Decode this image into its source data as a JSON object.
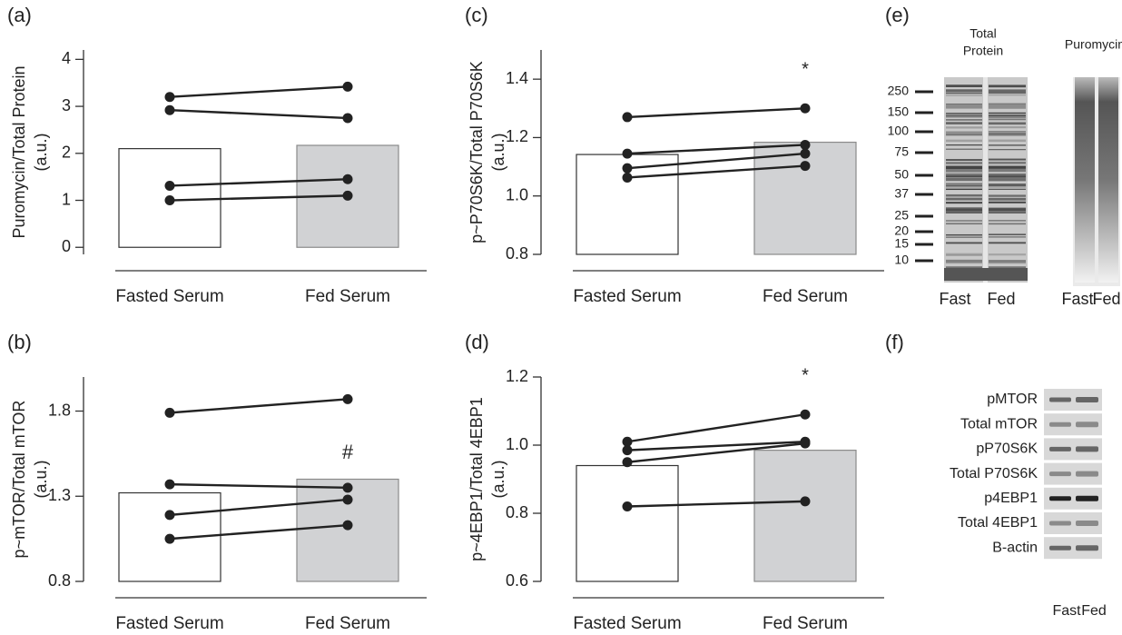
{
  "chart_data": [
    {
      "type": "bar",
      "panel": "(a)",
      "ylabel": [
        "Puromycin/Total Protein",
        "(a.u.)"
      ],
      "categories": [
        "Fasted Serum",
        "Fed Serum"
      ],
      "values": [
        2.1,
        2.17
      ],
      "bar_colors": [
        "#ffffff",
        "#d1d2d4"
      ],
      "series": [
        {
          "color": "#222222",
          "values": [
            3.2,
            3.42
          ]
        },
        {
          "color": "#222222",
          "values": [
            2.92,
            2.75
          ]
        },
        {
          "color": "#222222",
          "values": [
            1.31,
            1.45
          ]
        },
        {
          "color": "#222222",
          "values": [
            1.0,
            1.1
          ]
        }
      ],
      "ylim": [
        -0.15,
        4.2
      ],
      "yticks": [
        0,
        1,
        2,
        3,
        4
      ]
    },
    {
      "type": "bar",
      "panel": "(b)",
      "ylabel": [
        "p~mTOR/Total mTOR",
        "(a.u.)"
      ],
      "categories": [
        "Fasted Serum",
        "Fed Serum"
      ],
      "values": [
        1.32,
        1.4
      ],
      "bar_colors": [
        "#ffffff",
        "#d1d2d4"
      ],
      "series": [
        {
          "color": "#222222",
          "values": [
            1.79,
            1.87
          ]
        },
        {
          "color": "#222222",
          "values": [
            1.37,
            1.35
          ]
        },
        {
          "color": "#222222",
          "values": [
            1.19,
            1.28
          ]
        },
        {
          "color": "#222222",
          "values": [
            1.05,
            1.13
          ]
        }
      ],
      "ylim": [
        0.8,
        2.0
      ],
      "yticks": [
        0.8,
        1.3,
        1.8
      ],
      "annotation": "#"
    },
    {
      "type": "bar",
      "panel": "(c)",
      "ylabel": [
        "p~P70S6K/Total P70S6K",
        "(a.u.)"
      ],
      "categories": [
        "Fasted Serum",
        "Fed Serum"
      ],
      "values": [
        1.142,
        1.184
      ],
      "bar_colors": [
        "#ffffff",
        "#d1d2d4"
      ],
      "series": [
        {
          "color": "#222222",
          "values": [
            1.27,
            1.3
          ]
        },
        {
          "color": "#222222",
          "values": [
            1.145,
            1.175
          ]
        },
        {
          "color": "#222222",
          "values": [
            1.095,
            1.145
          ]
        },
        {
          "color": "#222222",
          "values": [
            1.063,
            1.103
          ]
        }
      ],
      "ylim": [
        0.8,
        1.5
      ],
      "yticks": [
        0.8,
        {
          "value": 1,
          "label": "1.0"
        },
        1.2,
        1.4
      ],
      "annotation": "*"
    },
    {
      "type": "bar",
      "panel": "(d)",
      "ylabel": [
        "p~4EBP1/Total 4EBP1",
        "(a.u.)"
      ],
      "categories": [
        "Fasted Serum",
        "Fed Serum"
      ],
      "values": [
        0.94,
        0.985
      ],
      "bar_colors": [
        "#ffffff",
        "#d1d2d4"
      ],
      "series": [
        {
          "color": "#222222",
          "values": [
            1.01,
            1.09
          ]
        },
        {
          "color": "#222222",
          "values": [
            0.985,
            1.01
          ]
        },
        {
          "color": "#222222",
          "values": [
            0.95,
            1.005
          ]
        },
        {
          "color": "#222222",
          "values": [
            0.82,
            0.835
          ]
        }
      ],
      "ylim": [
        0.6,
        1.2
      ],
      "yticks": [
        0.6,
        0.8,
        {
          "value": 1,
          "label": "1.0"
        },
        1.2
      ],
      "annotation": "*"
    }
  ],
  "blots": {
    "e": {
      "panel": "(e)",
      "headers": [
        [
          "Total",
          "Protein"
        ],
        [
          "Puromycin"
        ]
      ],
      "markers": [
        "250",
        "150",
        "100",
        "75",
        "50",
        "37",
        "25",
        "20",
        "15",
        "10"
      ],
      "lanes": [
        "Fast",
        "Fed",
        "Fast",
        "Fed"
      ]
    },
    "f": {
      "panel": "(f)",
      "rows": [
        "pMTOR",
        "Total mTOR",
        "pP70S6K",
        "Total P70S6K",
        "p4EBP1",
        "Total 4EBP1",
        "B-actin"
      ],
      "lanes": [
        "Fast",
        "Fed"
      ]
    }
  }
}
